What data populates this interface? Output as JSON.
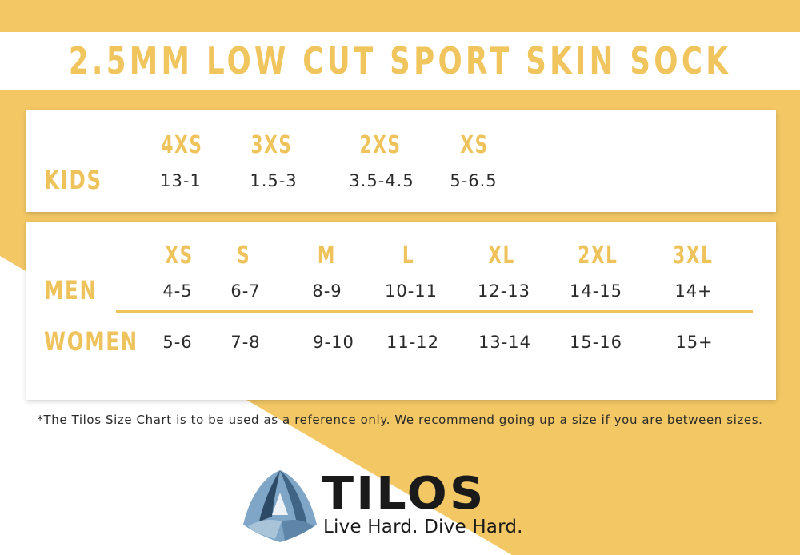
{
  "title": "2.5MM LOW CUT SPORT SKIN SOCK",
  "kids": {
    "label": "KIDS",
    "sizes": [
      "4XS",
      "3XS",
      "2XS",
      "XS"
    ],
    "values": [
      "13-1",
      "1.5-3",
      "3.5-4.5",
      "5-6.5"
    ]
  },
  "adults": {
    "sizes": [
      "XS",
      "S",
      "M",
      "L",
      "XL",
      "2XL",
      "3XL"
    ],
    "men": {
      "label": "MEN",
      "values": [
        "4-5",
        "6-7",
        "8-9",
        "10-11",
        "12-13",
        "14-15",
        "14+"
      ]
    },
    "women": {
      "label": "WOMEN",
      "values": [
        "5-6",
        "7-8",
        "9-10",
        "11-12",
        "13-14",
        "15-16",
        "15+"
      ]
    }
  },
  "footnote": "*The Tilos Size Chart is to be used as a reference only. We recommend going up a size if you are between sizes.",
  "brand": {
    "name": "TILOS",
    "tagline": "Live Hard. Dive Hard."
  },
  "colors": {
    "accent": "#f0c55e",
    "text": "#2b2b2b",
    "logo_dark": "#2c4a66",
    "logo_light": "#7fa6c6"
  }
}
